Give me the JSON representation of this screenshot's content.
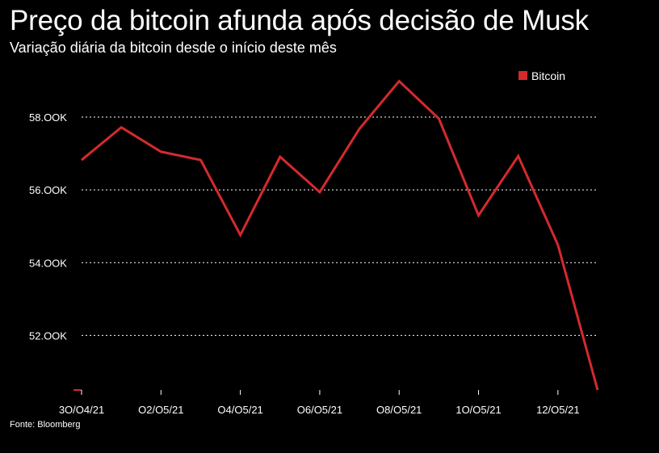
{
  "header": {
    "title": "Preço da bitcoin afunda após decisão de Musk",
    "subtitle": "Variação diária da bitcoin desde o início deste mês"
  },
  "footer": {
    "source": "Fonte: Bloomberg"
  },
  "colors": {
    "series": "#d42a2e",
    "background": "#000000",
    "text": "#ffffff",
    "grid": "#ffffff"
  },
  "chart_data": {
    "type": "line",
    "title": "Preço da bitcoin afunda após decisão de Musk",
    "subtitle": "Variação diária da bitcoin desde o início deste mês",
    "xlabel": "",
    "ylabel": "",
    "x": [
      "30/04/21",
      "01/05/21",
      "02/05/21",
      "03/05/21",
      "04/05/21",
      "05/05/21",
      "06/05/21",
      "07/05/21",
      "08/05/21",
      "09/05/21",
      "10/05/21",
      "11/05/21",
      "12/05/21",
      "13/05/21"
    ],
    "x_tick_labels": [
      "3O/O4/21",
      "O2/O5/21",
      "O4/O5/21",
      "O6/O5/21",
      "O8/O5/21",
      "1O/O5/21",
      "12/O5/21"
    ],
    "x_tick_indices": [
      0,
      2,
      4,
      6,
      8,
      10,
      12
    ],
    "ylim": [
      50.5,
      59.0
    ],
    "y_ticks": [
      52,
      54,
      56,
      58
    ],
    "y_tick_labels": [
      "52.OOK",
      "54.OOK",
      "56.OOK",
      "58.OOK"
    ],
    "grid": true,
    "legend_position": "top-right",
    "series": [
      {
        "name": "Bitcoin",
        "values": [
          56.82,
          57.72,
          57.05,
          56.82,
          54.76,
          56.91,
          55.94,
          57.68,
          58.99,
          57.96,
          55.3,
          56.93,
          54.49,
          50.5
        ]
      }
    ]
  }
}
